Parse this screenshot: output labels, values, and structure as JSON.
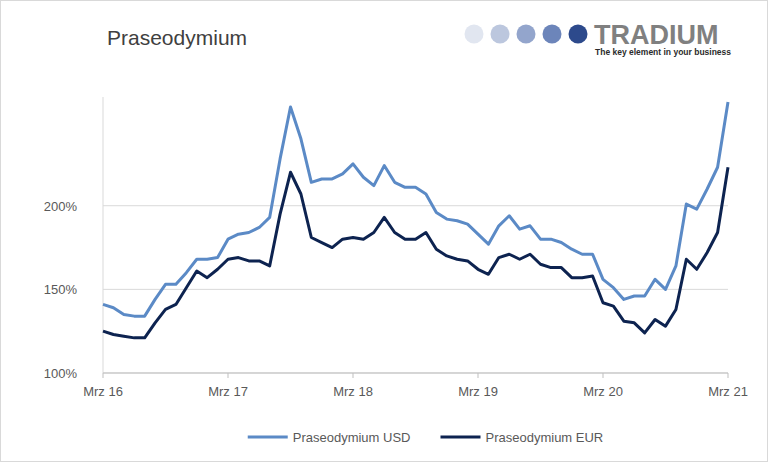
{
  "chart_data": {
    "type": "line",
    "title": "Praseodymium",
    "annotations": [
      "TRADIUM",
      "The key element in your business"
    ],
    "categories": [
      "Mrz 16",
      null,
      null,
      null,
      null,
      null,
      null,
      null,
      null,
      null,
      null,
      null,
      "Mrz 17",
      null,
      null,
      null,
      null,
      null,
      null,
      null,
      null,
      null,
      null,
      null,
      "Mrz 18",
      null,
      null,
      null,
      null,
      null,
      null,
      null,
      null,
      null,
      null,
      null,
      "Mrz 19",
      null,
      null,
      null,
      null,
      null,
      null,
      null,
      null,
      null,
      null,
      null,
      "Mrz 20",
      null,
      null,
      null,
      null,
      null,
      null,
      null,
      null,
      null,
      null,
      null,
      "Mrz 21"
    ],
    "series": [
      {
        "name": "Praseodymium USD",
        "color": "#5b8ac6",
        "values": [
          141,
          139,
          135,
          134,
          134,
          144,
          153,
          153,
          160,
          168,
          168,
          169,
          180,
          183,
          184,
          187,
          193,
          228,
          259,
          240,
          214,
          216,
          216,
          219,
          225,
          217,
          212,
          224,
          214,
          211,
          211,
          207,
          196,
          192,
          191,
          189,
          183,
          177,
          188,
          194,
          186,
          188,
          180,
          180,
          178,
          174,
          171,
          171,
          156,
          151,
          144,
          146,
          146,
          156,
          150,
          164,
          201,
          198,
          210,
          223,
          262
        ]
      },
      {
        "name": "Praseodymium EUR",
        "color": "#0d2350",
        "values": [
          125,
          123,
          122,
          121,
          121,
          130,
          138,
          141,
          151,
          161,
          157,
          162,
          168,
          169,
          167,
          167,
          164,
          195,
          220,
          207,
          181,
          178,
          175,
          180,
          181,
          180,
          184,
          193,
          184,
          180,
          180,
          184,
          174,
          170,
          168,
          167,
          162,
          159,
          169,
          171,
          168,
          171,
          165,
          163,
          163,
          157,
          157,
          158,
          142,
          140,
          131,
          130,
          124,
          132,
          128,
          138,
          168,
          162,
          172,
          184,
          223
        ]
      }
    ],
    "ylim": [
      100,
      265
    ],
    "yticks": [
      {
        "value": 100,
        "label": "100%"
      },
      {
        "value": 150,
        "label": "150%"
      },
      {
        "value": 200,
        "label": "200%"
      }
    ],
    "grid": true,
    "legend": "bottom"
  }
}
